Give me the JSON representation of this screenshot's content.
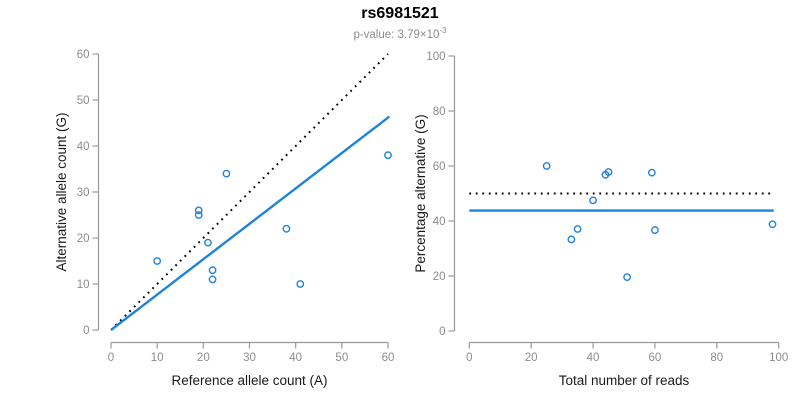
{
  "header": {
    "title": "rs6981521",
    "subtitle_prefix": "p-value: 3.79×10",
    "subtitle_exponent": "-3"
  },
  "colors": {
    "accent_blue": "#1e83db",
    "reference_black": "#000000",
    "axis_gray": "#999999",
    "tick_label_gray": "#8c8c8c",
    "axis_title_color": "#1a1a1a"
  },
  "chart_data": [
    {
      "type": "scatter",
      "panel": "allele-counts",
      "xlabel": "Reference allele count (A)",
      "ylabel": "Alternative allele count (G)",
      "xlim": [
        0,
        60
      ],
      "ylim": [
        0,
        60
      ],
      "xticks": [
        0,
        10,
        20,
        30,
        40,
        50,
        60
      ],
      "yticks": [
        0,
        10,
        20,
        30,
        40,
        50,
        60
      ],
      "grid": false,
      "legend": false,
      "points": [
        [
          10,
          15
        ],
        [
          19,
          25
        ],
        [
          19,
          26
        ],
        [
          21,
          19
        ],
        [
          22,
          11
        ],
        [
          22,
          13
        ],
        [
          25,
          34
        ],
        [
          38,
          22
        ],
        [
          41,
          10
        ],
        [
          60,
          38
        ]
      ],
      "lines": [
        {
          "name": "identity-line",
          "style": "dotted",
          "color": "#000000",
          "x1": 0,
          "y1": 0,
          "x2": 60,
          "y2": 60
        },
        {
          "name": "regression-line",
          "style": "solid",
          "color": "#1e83db",
          "x1": 0,
          "y1": 0,
          "x2": 60.3,
          "y2": 46.4
        }
      ]
    },
    {
      "type": "scatter",
      "panel": "percentage-alternative",
      "xlabel": "Total number of reads",
      "ylabel": "Percentage alternative (G)",
      "xlim": [
        0,
        100
      ],
      "ylim": [
        0,
        100
      ],
      "xticks": [
        0,
        20,
        40,
        60,
        80,
        100
      ],
      "yticks": [
        0,
        20,
        40,
        60,
        80,
        100
      ],
      "grid": false,
      "legend": false,
      "points": [
        [
          25,
          60
        ],
        [
          33,
          33.3
        ],
        [
          35,
          37.1
        ],
        [
          40,
          47.5
        ],
        [
          44,
          56.8
        ],
        [
          45,
          57.8
        ],
        [
          51,
          19.6
        ],
        [
          59,
          57.6
        ],
        [
          60,
          36.7
        ],
        [
          98,
          38.8
        ]
      ],
      "lines": [
        {
          "name": "expected-heterozygous-line",
          "style": "dotted",
          "color": "#000000",
          "x1": 0,
          "y1": 50,
          "x2": 98.4,
          "y2": 50
        },
        {
          "name": "observed-mean-line",
          "style": "solid",
          "color": "#1e83db",
          "x1": 0,
          "y1": 43.8,
          "x2": 98.4,
          "y2": 43.8
        }
      ]
    }
  ]
}
